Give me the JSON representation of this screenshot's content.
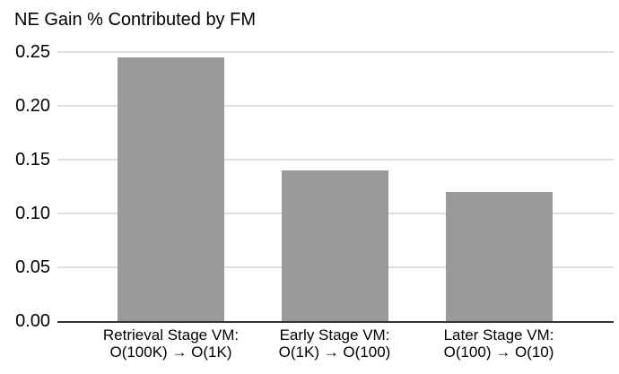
{
  "chart_data": {
    "type": "bar",
    "title": "NE Gain % Contributed by FM",
    "categories": [
      [
        "Retrieval Stage VM:",
        "O(100K) → O(1K)"
      ],
      [
        "Early Stage VM:",
        "O(1K) → O(100)"
      ],
      [
        "Later Stage VM:",
        "O(100) → O(10)"
      ]
    ],
    "values": [
      0.245,
      0.14,
      0.12
    ],
    "yticks": [
      {
        "value": 0.0,
        "label": "0.00"
      },
      {
        "value": 0.05,
        "label": "0.05"
      },
      {
        "value": 0.1,
        "label": "0.10"
      },
      {
        "value": 0.15,
        "label": "0.15"
      },
      {
        "value": 0.2,
        "label": "0.20"
      },
      {
        "value": 0.25,
        "label": "0.25"
      }
    ],
    "ylim": [
      0,
      0.25
    ],
    "xlabel": "",
    "ylabel": "",
    "grid": "horizontal",
    "legend": "none",
    "colors": {
      "bar": "#9a9a9a",
      "gridline": "#dddddd",
      "axis": "#333333",
      "text": "#000000",
      "background": "#ffffff"
    }
  }
}
